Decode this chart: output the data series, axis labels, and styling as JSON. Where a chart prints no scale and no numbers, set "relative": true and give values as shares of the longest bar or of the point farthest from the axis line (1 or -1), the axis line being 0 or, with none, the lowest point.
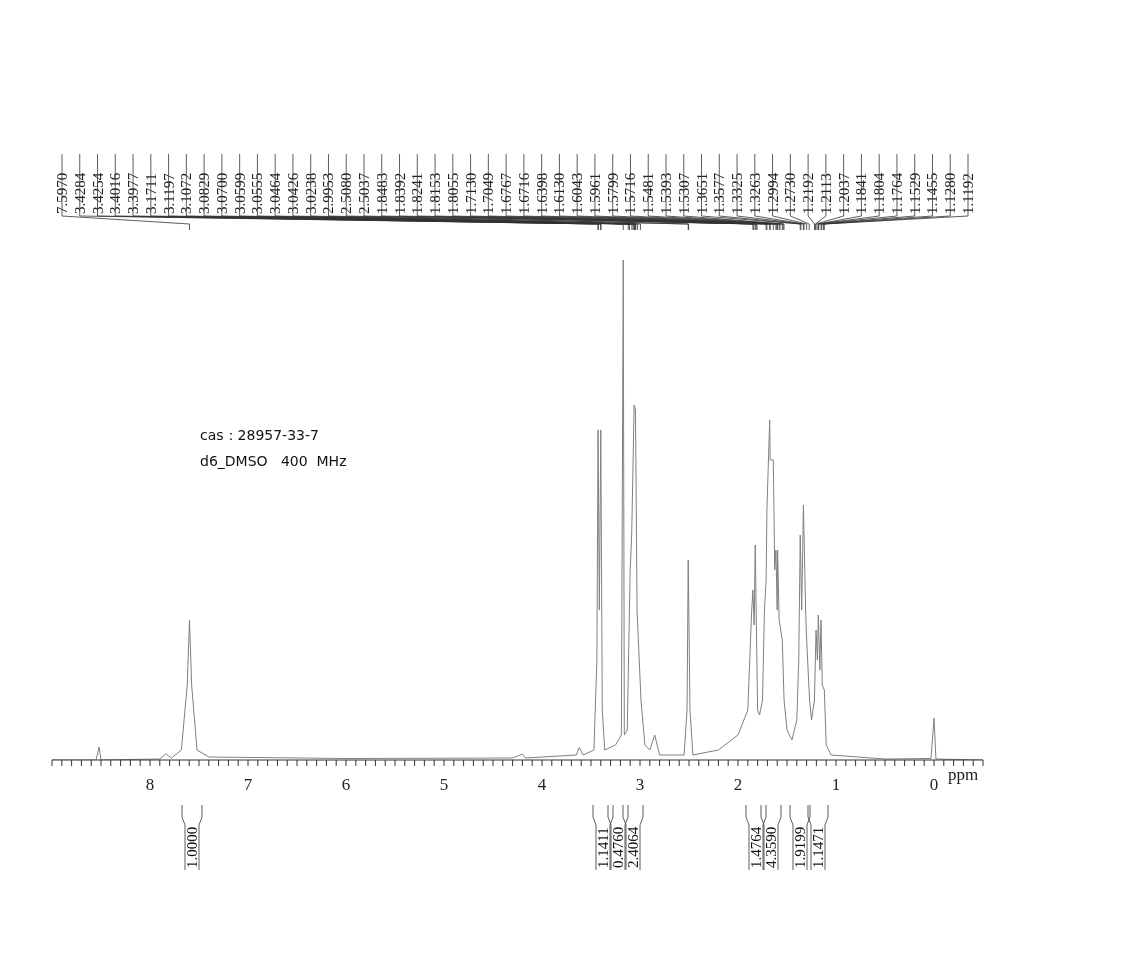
{
  "chart_data": {
    "type": "line",
    "relative": true,
    "xlabel": "ppm",
    "xlim": [
      9.0,
      -0.5
    ],
    "xticks": [
      {
        "value": 9.0,
        "label": null
      },
      {
        "value": 8.9,
        "label": null
      },
      {
        "value": 8.8,
        "label": null
      },
      {
        "value": 8.7,
        "label": null
      },
      {
        "value": 8.6,
        "label": null
      },
      {
        "value": 8.5,
        "label": null
      },
      {
        "value": 8.4,
        "label": null
      },
      {
        "value": 8.3,
        "label": null
      },
      {
        "value": 8.2,
        "label": null
      },
      {
        "value": 8.1,
        "label": null
      },
      8,
      {
        "value": 7.9,
        "label": null
      },
      {
        "value": 7.8,
        "label": null
      },
      {
        "value": 7.7,
        "label": null
      },
      {
        "value": 7.6,
        "label": null
      },
      {
        "value": 7.5,
        "label": null
      },
      {
        "value": 7.4,
        "label": null
      },
      {
        "value": 7.3,
        "label": null
      },
      {
        "value": 7.2,
        "label": null
      },
      {
        "value": 7.1,
        "label": null
      },
      7,
      {
        "value": 6.9,
        "label": null
      },
      {
        "value": 6.8,
        "label": null
      },
      {
        "value": 6.7,
        "label": null
      },
      {
        "value": 6.6,
        "label": null
      },
      {
        "value": 6.5,
        "label": null
      },
      {
        "value": 6.4,
        "label": null
      },
      {
        "value": 6.3,
        "label": null
      },
      {
        "value": 6.2,
        "label": null
      },
      {
        "value": 6.1,
        "label": null
      },
      6,
      {
        "value": 5.9,
        "label": null
      },
      {
        "value": 5.8,
        "label": null
      },
      {
        "value": 5.7,
        "label": null
      },
      {
        "value": 5.6,
        "label": null
      },
      {
        "value": 5.5,
        "label": null
      },
      {
        "value": 5.4,
        "label": null
      },
      {
        "value": 5.3,
        "label": null
      },
      {
        "value": 5.2,
        "label": null
      },
      {
        "value": 5.1,
        "label": null
      },
      5,
      {
        "value": 4.9,
        "label": null
      },
      {
        "value": 4.8,
        "label": null
      },
      {
        "value": 4.7,
        "label": null
      },
      {
        "value": 4.6,
        "label": null
      },
      {
        "value": 4.5,
        "label": null
      },
      {
        "value": 4.4,
        "label": null
      },
      {
        "value": 4.3,
        "label": null
      },
      {
        "value": 4.2,
        "label": null
      },
      {
        "value": 4.1,
        "label": null
      },
      4,
      {
        "value": 3.9,
        "label": null
      },
      {
        "value": 3.8,
        "label": null
      },
      {
        "value": 3.7,
        "label": null
      },
      {
        "value": 3.6,
        "label": null
      },
      {
        "value": 3.5,
        "label": null
      },
      {
        "value": 3.4,
        "label": null
      },
      {
        "value": 3.3,
        "label": null
      },
      {
        "value": 3.2,
        "label": null
      },
      {
        "value": 3.1,
        "label": null
      },
      3,
      {
        "value": 2.9,
        "label": null
      },
      {
        "value": 2.8,
        "label": null
      },
      {
        "value": 2.7,
        "label": null
      },
      {
        "value": 2.6,
        "label": null
      },
      {
        "value": 2.5,
        "label": null
      },
      {
        "value": 2.4,
        "label": null
      },
      {
        "value": 2.3,
        "label": null
      },
      {
        "value": 2.2,
        "label": null
      },
      {
        "value": 2.1,
        "label": null
      },
      2,
      {
        "value": 1.9,
        "label": null
      },
      {
        "value": 1.8,
        "label": null
      },
      {
        "value": 1.7,
        "label": null
      },
      {
        "value": 1.6,
        "label": null
      },
      {
        "value": 1.5,
        "label": null
      },
      {
        "value": 1.4,
        "label": null
      },
      {
        "value": 1.3,
        "label": null
      },
      {
        "value": 1.2,
        "label": null
      },
      {
        "value": 1.1,
        "label": null
      },
      1,
      {
        "value": 0.9,
        "label": null
      },
      {
        "value": 0.8,
        "label": null
      },
      {
        "value": 0.7,
        "label": null
      },
      {
        "value": 0.6,
        "label": null
      },
      {
        "value": 0.5,
        "label": null
      },
      {
        "value": 0.4,
        "label": null
      },
      {
        "value": 0.3,
        "label": null
      },
      {
        "value": 0.2,
        "label": null
      },
      {
        "value": 0.1,
        "label": null
      },
      0,
      {
        "value": -0.1,
        "label": null
      },
      {
        "value": -0.2,
        "label": null
      },
      {
        "value": -0.3,
        "label": null
      },
      {
        "value": -0.4,
        "label": null
      },
      {
        "value": -0.5,
        "label": null
      }
    ],
    "series": [
      {
        "color": "#808080",
        "x": [
          9.0,
          8.55,
          8.52,
          8.5,
          7.9,
          7.84,
          7.78,
          7.68,
          7.62,
          7.597,
          7.575,
          7.52,
          7.4,
          6.0,
          4.3,
          4.2,
          4.17,
          3.65,
          3.62,
          3.58,
          3.47,
          3.44,
          3.428,
          3.415,
          3.4,
          3.385,
          3.36,
          3.25,
          3.19,
          3.171,
          3.16,
          3.13,
          3.1,
          3.085,
          3.07,
          3.06,
          3.046,
          3.03,
          2.99,
          2.95,
          2.9,
          2.85,
          2.8,
          2.55,
          2.52,
          2.508,
          2.49,
          2.46,
          2.2,
          2.0,
          1.9,
          1.86,
          1.848,
          1.835,
          1.824,
          1.8,
          1.78,
          1.75,
          1.73,
          1.713,
          1.705,
          1.6767,
          1.6716,
          1.6398,
          1.625,
          1.613,
          1.6,
          1.596,
          1.58,
          1.548,
          1.53,
          1.5,
          1.45,
          1.4,
          1.38,
          1.365,
          1.35,
          1.3325,
          1.31,
          1.2994,
          1.27,
          1.25,
          1.22,
          1.2037,
          1.19,
          1.1804,
          1.165,
          1.1529,
          1.14,
          1.1192,
          1.1,
          1.05,
          0.5,
          0.03,
          0.0,
          -0.02,
          -0.5
        ],
        "values": [
          0,
          0,
          0.026,
          0,
          0.002,
          0.012,
          0.004,
          0.02,
          0.15,
          0.28,
          0.15,
          0.02,
          0.006,
          0.003,
          0.004,
          0.012,
          0.004,
          0.01,
          0.025,
          0.01,
          0.02,
          0.2,
          0.66,
          0.3,
          0.66,
          0.1,
          0.02,
          0.03,
          0.05,
          1.0,
          0.05,
          0.06,
          0.38,
          0.45,
          0.6,
          0.71,
          0.7,
          0.3,
          0.12,
          0.03,
          0.02,
          0.05,
          0.01,
          0.01,
          0.1,
          0.4,
          0.1,
          0.01,
          0.02,
          0.05,
          0.1,
          0.3,
          0.34,
          0.27,
          0.43,
          0.1,
          0.09,
          0.12,
          0.3,
          0.36,
          0.5,
          0.68,
          0.6,
          0.6,
          0.38,
          0.42,
          0.3,
          0.42,
          0.28,
          0.24,
          0.12,
          0.06,
          0.04,
          0.08,
          0.2,
          0.45,
          0.3,
          0.51,
          0.3,
          0.24,
          0.12,
          0.08,
          0.12,
          0.26,
          0.2,
          0.29,
          0.18,
          0.28,
          0.15,
          0.14,
          0.03,
          0.01,
          0.002,
          0.003,
          0.084,
          0.002,
          0
        ]
      }
    ],
    "annotations": [
      "cas：28957-33-7",
      "d6_DMSO   400  MHz",
      "1.0000",
      "1.1411",
      "0.4760",
      "2.4064",
      "1.4764",
      "4.3590",
      "1.9199",
      "1.1471",
      "7.5970",
      "3.4284",
      "3.4254",
      "3.4016",
      "3.3977",
      "3.1711",
      "3.1197",
      "3.1072",
      "3.0829",
      "3.0700",
      "3.0599",
      "3.0555",
      "3.0464",
      "3.0426",
      "3.0238",
      "2.9953",
      "2.5080",
      "2.5037",
      "1.8483",
      "1.8392",
      "1.8241",
      "1.8153",
      "1.8055",
      "1.7130",
      "1.7049",
      "1.6767",
      "1.6716",
      "1.6398",
      "1.6130",
      "1.6043",
      "1.5961",
      "1.5799",
      "1.5716",
      "1.5481",
      "1.5393",
      "1.5307",
      "1.3651",
      "1.3577",
      "1.3325",
      "1.3263",
      "1.2994",
      "1.2730",
      "1.2192",
      "1.2113",
      "1.2037",
      "1.1841",
      "1.1804",
      "1.1764",
      "1.1529",
      "1.1455",
      "1.1280",
      "1.1192"
    ]
  }
}
